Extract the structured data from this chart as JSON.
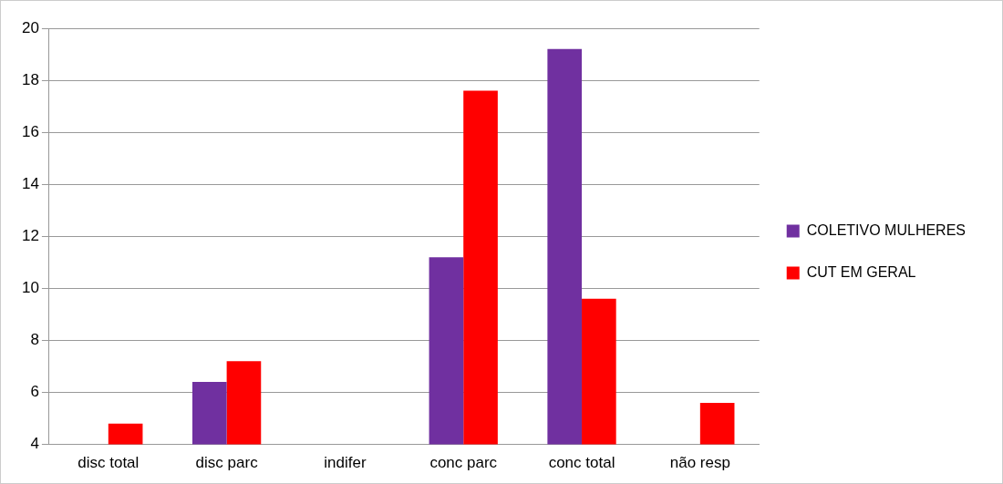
{
  "chart_data": {
    "type": "bar",
    "categories": [
      "disc total",
      "disc parc",
      "indifer",
      "conc parc",
      "conc total",
      "não resp"
    ],
    "series": [
      {
        "name": "COLETIVO MULHERES",
        "color": "#7030a0",
        "values": [
          null,
          6.4,
          null,
          11.2,
          19.2,
          null
        ]
      },
      {
        "name": "CUT EM GERAL",
        "color": "#ff0000",
        "values": [
          4.8,
          7.2,
          null,
          17.6,
          9.6,
          5.6
        ]
      }
    ],
    "ylim": [
      4,
      20
    ],
    "yticks": [
      4,
      6,
      8,
      10,
      12,
      14,
      16,
      18,
      20
    ],
    "grid": "y",
    "legend": "right"
  }
}
